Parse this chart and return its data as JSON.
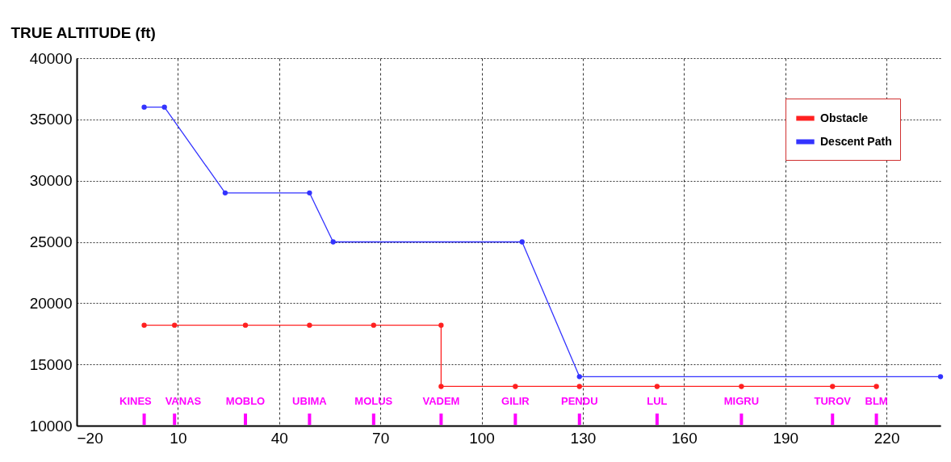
{
  "chart_data": {
    "type": "line",
    "ylabel": "TRUE ALTITUDE (ft)",
    "xlim": [
      -20,
      236
    ],
    "xticks": [
      -20,
      10,
      40,
      70,
      100,
      130,
      160,
      190,
      220
    ],
    "ylim": [
      10000,
      40000
    ],
    "yticks": [
      10000,
      15000,
      20000,
      25000,
      30000,
      35000,
      40000
    ],
    "grid": true,
    "line_style": "solid",
    "marker": "circle",
    "legend": "top right",
    "series": [
      {
        "name": "Obstacle",
        "color": "#ff2020",
        "x": [
          0,
          9,
          30,
          49,
          68,
          88,
          88,
          110,
          129,
          152,
          177,
          204,
          217
        ],
        "values": [
          18200,
          18200,
          18200,
          18200,
          18200,
          18200,
          13200,
          13200,
          13200,
          13200,
          13200,
          13200,
          13200
        ]
      },
      {
        "name": "Descent Path",
        "color": "#3333ff",
        "x": [
          0,
          6,
          24,
          49,
          56,
          112,
          129,
          236
        ],
        "values": [
          36000,
          36000,
          29000,
          29000,
          25000,
          25000,
          14000,
          14000
        ]
      }
    ],
    "annotations": [
      "KINES",
      "VANAS",
      "MOBLO",
      "UBIMA",
      "MOLUS",
      "VADEM",
      "GILIR",
      "PENDU",
      "LUL",
      "MIGRU",
      "TUROV",
      "BLM"
    ]
  }
}
